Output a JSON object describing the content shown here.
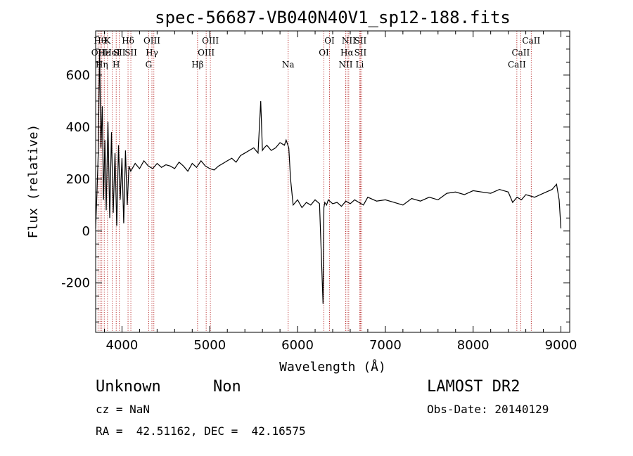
{
  "chart_data": {
    "type": "line",
    "title": "spec-56687-VB040N40V1_sp12-188.fits",
    "xlabel": "Wavelength (Å)",
    "ylabel": "Flux (relative)",
    "xlim": [
      3700,
      9100
    ],
    "ylim": [
      -390,
      770
    ],
    "xticks": [
      4000,
      5000,
      6000,
      7000,
      8000,
      9000
    ],
    "yticks": [
      -200,
      0,
      200,
      400,
      600
    ],
    "grid": false,
    "series": [
      {
        "x": [
          3700,
          3715,
          3730,
          3745,
          3760,
          3775,
          3790,
          3805,
          3820,
          3840,
          3860,
          3880,
          3900,
          3920,
          3940,
          3960,
          3980,
          4000,
          4020,
          4040,
          4060,
          4080,
          4100,
          4150,
          4200,
          4250,
          4300,
          4350,
          4400,
          4450,
          4500,
          4550,
          4600,
          4650,
          4700,
          4750,
          4800,
          4850,
          4900,
          4950,
          5000,
          5050,
          5100,
          5150,
          5200,
          5250,
          5300,
          5350,
          5400,
          5450,
          5500,
          5550,
          5580,
          5600,
          5620,
          5650,
          5700,
          5750,
          5800,
          5850,
          5870,
          5900,
          5920,
          5950,
          6000,
          6050,
          6100,
          6150,
          6200,
          6250,
          6290,
          6300,
          6310,
          6330,
          6350,
          6400,
          6450,
          6500,
          6550,
          6600,
          6650,
          6700,
          6750,
          6800,
          6900,
          7000,
          7100,
          7200,
          7300,
          7400,
          7500,
          7600,
          7700,
          7800,
          7900,
          8000,
          8100,
          8200,
          8300,
          8400,
          8450,
          8500,
          8550,
          8600,
          8700,
          8800,
          8900,
          8950,
          8980,
          9000
        ],
        "y": [
          10,
          150,
          300,
          700,
          320,
          480,
          120,
          350,
          80,
          420,
          50,
          380,
          70,
          300,
          20,
          330,
          120,
          280,
          30,
          310,
          100,
          250,
          230,
          260,
          240,
          270,
          250,
          240,
          260,
          245,
          255,
          250,
          240,
          265,
          250,
          230,
          260,
          245,
          270,
          250,
          240,
          235,
          250,
          260,
          270,
          280,
          265,
          290,
          300,
          310,
          320,
          300,
          500,
          310,
          320,
          330,
          310,
          320,
          340,
          330,
          350,
          320,
          200,
          100,
          120,
          90,
          110,
          100,
          120,
          105,
          -280,
          90,
          110,
          100,
          120,
          105,
          110,
          95,
          115,
          105,
          120,
          110,
          100,
          130,
          115,
          120,
          110,
          100,
          125,
          115,
          130,
          120,
          145,
          150,
          140,
          155,
          150,
          145,
          160,
          150,
          110,
          130,
          120,
          140,
          130,
          145,
          160,
          180,
          120,
          10
        ]
      }
    ],
    "lines": [
      {
        "x": 3727,
        "labels": [
          "OII"
        ],
        "rows": [
          2
        ]
      },
      {
        "x": 3750,
        "labels": [
          "Hθ"
        ],
        "rows": [
          1
        ]
      },
      {
        "x": 3770,
        "labels": [
          "Hη"
        ],
        "rows": [
          3
        ]
      },
      {
        "x": 3798,
        "labels": [
          "Hε"
        ],
        "rows": [
          2
        ]
      },
      {
        "x": 3835,
        "labels": [
          "K"
        ],
        "rows": [
          1
        ]
      },
      {
        "x": 3889,
        "labels": [
          "HeI"
        ],
        "rows": [
          2
        ]
      },
      {
        "x": 3934,
        "labels": [
          "H"
        ],
        "rows": [
          3
        ]
      },
      {
        "x": 3970,
        "labels": [
          "SII"
        ],
        "rows": [
          2
        ]
      },
      {
        "x": 4069,
        "labels": [
          "Hδ"
        ],
        "rows": [
          1
        ]
      },
      {
        "x": 4101,
        "labels": [
          "SII"
        ],
        "rows": [
          2
        ]
      },
      {
        "x": 4304,
        "labels": [
          "G"
        ],
        "rows": [
          3
        ]
      },
      {
        "x": 4341,
        "labels": [
          "OIII",
          "Hγ"
        ],
        "rows": [
          1,
          2
        ]
      },
      {
        "x": 4363,
        "labels": [
          ""
        ],
        "rows": []
      },
      {
        "x": 4861,
        "labels": [
          "Hβ"
        ],
        "rows": [
          3
        ]
      },
      {
        "x": 4959,
        "labels": [
          "OIII"
        ],
        "rows": [
          2
        ]
      },
      {
        "x": 5007,
        "labels": [
          "OIII"
        ],
        "rows": [
          1
        ]
      },
      {
        "x": 5893,
        "labels": [
          "Na"
        ],
        "rows": [
          3
        ]
      },
      {
        "x": 6300,
        "labels": [
          "OI"
        ],
        "rows": [
          2
        ]
      },
      {
        "x": 6364,
        "labels": [
          "OI"
        ],
        "rows": [
          1
        ]
      },
      {
        "x": 6548,
        "labels": [
          "NII"
        ],
        "rows": [
          3
        ]
      },
      {
        "x": 6563,
        "labels": [
          "Hα"
        ],
        "rows": [
          2
        ]
      },
      {
        "x": 6583,
        "labels": [
          "NII"
        ],
        "rows": [
          1
        ]
      },
      {
        "x": 6708,
        "labels": [
          "Li"
        ],
        "rows": [
          3
        ]
      },
      {
        "x": 6716,
        "labels": [
          "SII",
          "SII"
        ],
        "rows": [
          1,
          2
        ]
      },
      {
        "x": 6731,
        "labels": [
          ""
        ],
        "rows": []
      },
      {
        "x": 8498,
        "labels": [
          "CaII"
        ],
        "rows": [
          3
        ]
      },
      {
        "x": 8542,
        "labels": [
          "CaII"
        ],
        "rows": [
          2
        ]
      },
      {
        "x": 8662,
        "labels": [
          "CaII"
        ],
        "rows": [
          1
        ]
      }
    ]
  },
  "info": {
    "object_class": "Unknown",
    "object_subclass": "Non",
    "survey": "LAMOST DR2",
    "cz": "cz = NaN",
    "obs_date": "Obs-Date: 20140129",
    "coords": "RA =  42.51162, DEC =  42.16575"
  }
}
